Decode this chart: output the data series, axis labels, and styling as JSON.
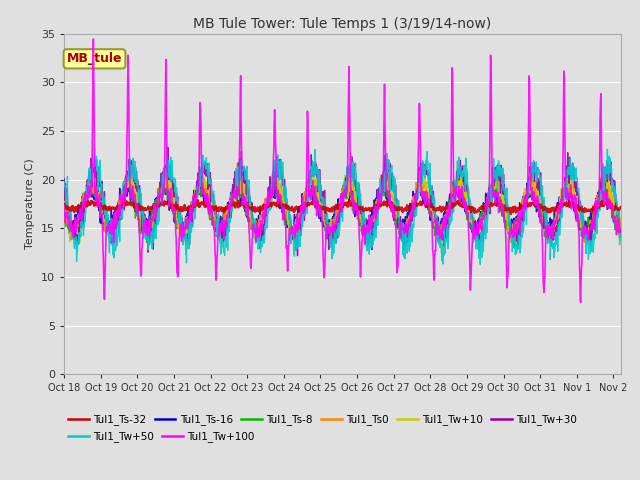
{
  "title": "MB Tule Tower: Tule Temps 1 (3/19/14-now)",
  "ylabel": "Temperature (C)",
  "ylim": [
    0,
    35
  ],
  "yticks": [
    0,
    5,
    10,
    15,
    20,
    25,
    30,
    35
  ],
  "bg_color": "#e0e0e0",
  "plot_bg_color": "#e0e0e0",
  "legend_label": "MB_tule",
  "x_labels": [
    "Oct 18",
    "Oct 19",
    "Oct 20",
    "Oct 21",
    "Oct 22",
    "Oct 23",
    "Oct 24",
    "Oct 25",
    "Oct 26",
    "Oct 27",
    "Oct 28",
    "Oct 29",
    "Oct 30",
    "Oct 31",
    "Nov 1",
    "Nov 2"
  ],
  "series": [
    {
      "label": "Tul1_Ts-32",
      "color": "#cc0000",
      "lw": 1.5,
      "zorder": 5
    },
    {
      "label": "Tul1_Ts-16",
      "color": "#0000cc",
      "lw": 1.0,
      "zorder": 4
    },
    {
      "label": "Tul1_Ts-8",
      "color": "#00bb00",
      "lw": 1.0,
      "zorder": 4
    },
    {
      "label": "Tul1_Ts0",
      "color": "#ff8800",
      "lw": 1.0,
      "zorder": 4
    },
    {
      "label": "Tul1_Tw+10",
      "color": "#cccc00",
      "lw": 1.0,
      "zorder": 4
    },
    {
      "label": "Tul1_Tw+30",
      "color": "#9900aa",
      "lw": 1.0,
      "zorder": 4
    },
    {
      "label": "Tul1_Tw+50",
      "color": "#00cccc",
      "lw": 1.0,
      "zorder": 4
    },
    {
      "label": "Tul1_Tw+100",
      "color": "#ff00ff",
      "lw": 1.2,
      "zorder": 6
    }
  ],
  "legend_rows": [
    [
      "Tul1_Ts-32",
      "Tul1_Ts-16",
      "Tul1_Ts-8",
      "Tul1_Ts0",
      "Tul1_Tw+10",
      "Tul1_Tw+30"
    ],
    [
      "Tul1_Tw+50",
      "Tul1_Tw+100"
    ]
  ]
}
